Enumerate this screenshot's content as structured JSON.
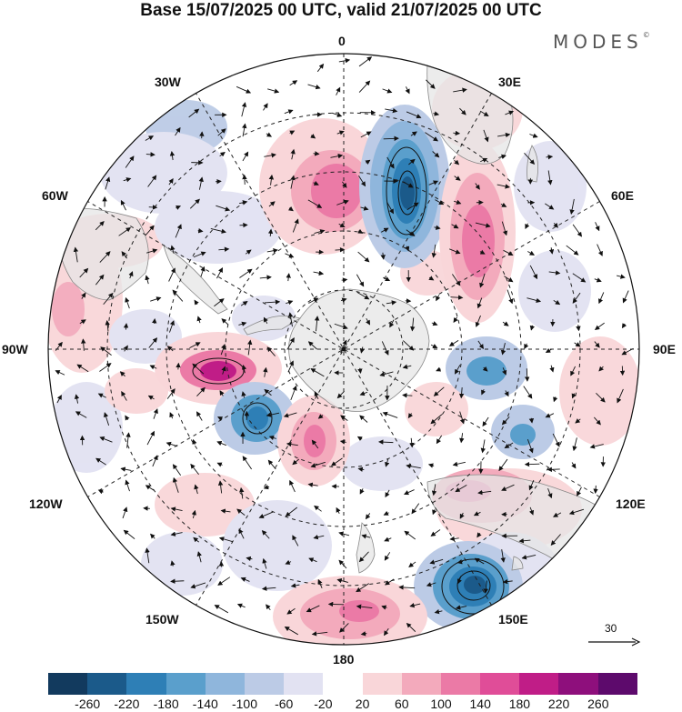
{
  "title": "Base 15/07/2025 00 UTC, valid 21/07/2025 00 UTC",
  "brand": {
    "text": "MODES",
    "mark": "©"
  },
  "meridian_labels": {
    "m0": "0",
    "m30e": "30E",
    "m60e": "60E",
    "m90e": "90E",
    "m120e": "120E",
    "m150e": "150E",
    "m180": "180",
    "m150w": "150W",
    "m120w": "120W",
    "m90w": "90W",
    "m60w": "60W",
    "m30w": "30W"
  },
  "reference_vector": {
    "label": "30",
    "icon": "arrow-right-icon"
  },
  "colorbar": {
    "ticks": [
      "-260",
      "-220",
      "-180",
      "-140",
      "-100",
      "-60",
      "-20",
      "20",
      "60",
      "100",
      "140",
      "180",
      "220",
      "260"
    ],
    "colors": [
      "#123a5e",
      "#1b5a8a",
      "#2e7fb6",
      "#5a9fcc",
      "#8fb6dc",
      "#bccbe6",
      "#e2e2f2",
      "#ffffff",
      "#f9d6d9",
      "#f3aabc",
      "#eb7aa6",
      "#e04d98",
      "#c01d87",
      "#8e0f7c",
      "#5d0a6c"
    ]
  },
  "map": {
    "type": "south-polar-stereographic anomaly map",
    "land_color": "#e6e6e6",
    "anomalies": [
      {
        "id": "a1",
        "color": "#f3aabc",
        "level": 100
      },
      {
        "id": "a2",
        "color": "#2e7fb6",
        "level": -180
      },
      {
        "id": "a3",
        "color": "#eb7aa6",
        "level": 140
      },
      {
        "id": "a4",
        "color": "#e04d98",
        "level": 180
      },
      {
        "id": "a5",
        "color": "#5a9fcc",
        "level": -140
      },
      {
        "id": "a6",
        "color": "#eb7aa6",
        "level": 140
      },
      {
        "id": "a7",
        "color": "#2e7fb6",
        "level": -180
      },
      {
        "id": "a8",
        "color": "#f3aabc",
        "level": 100
      }
    ]
  }
}
